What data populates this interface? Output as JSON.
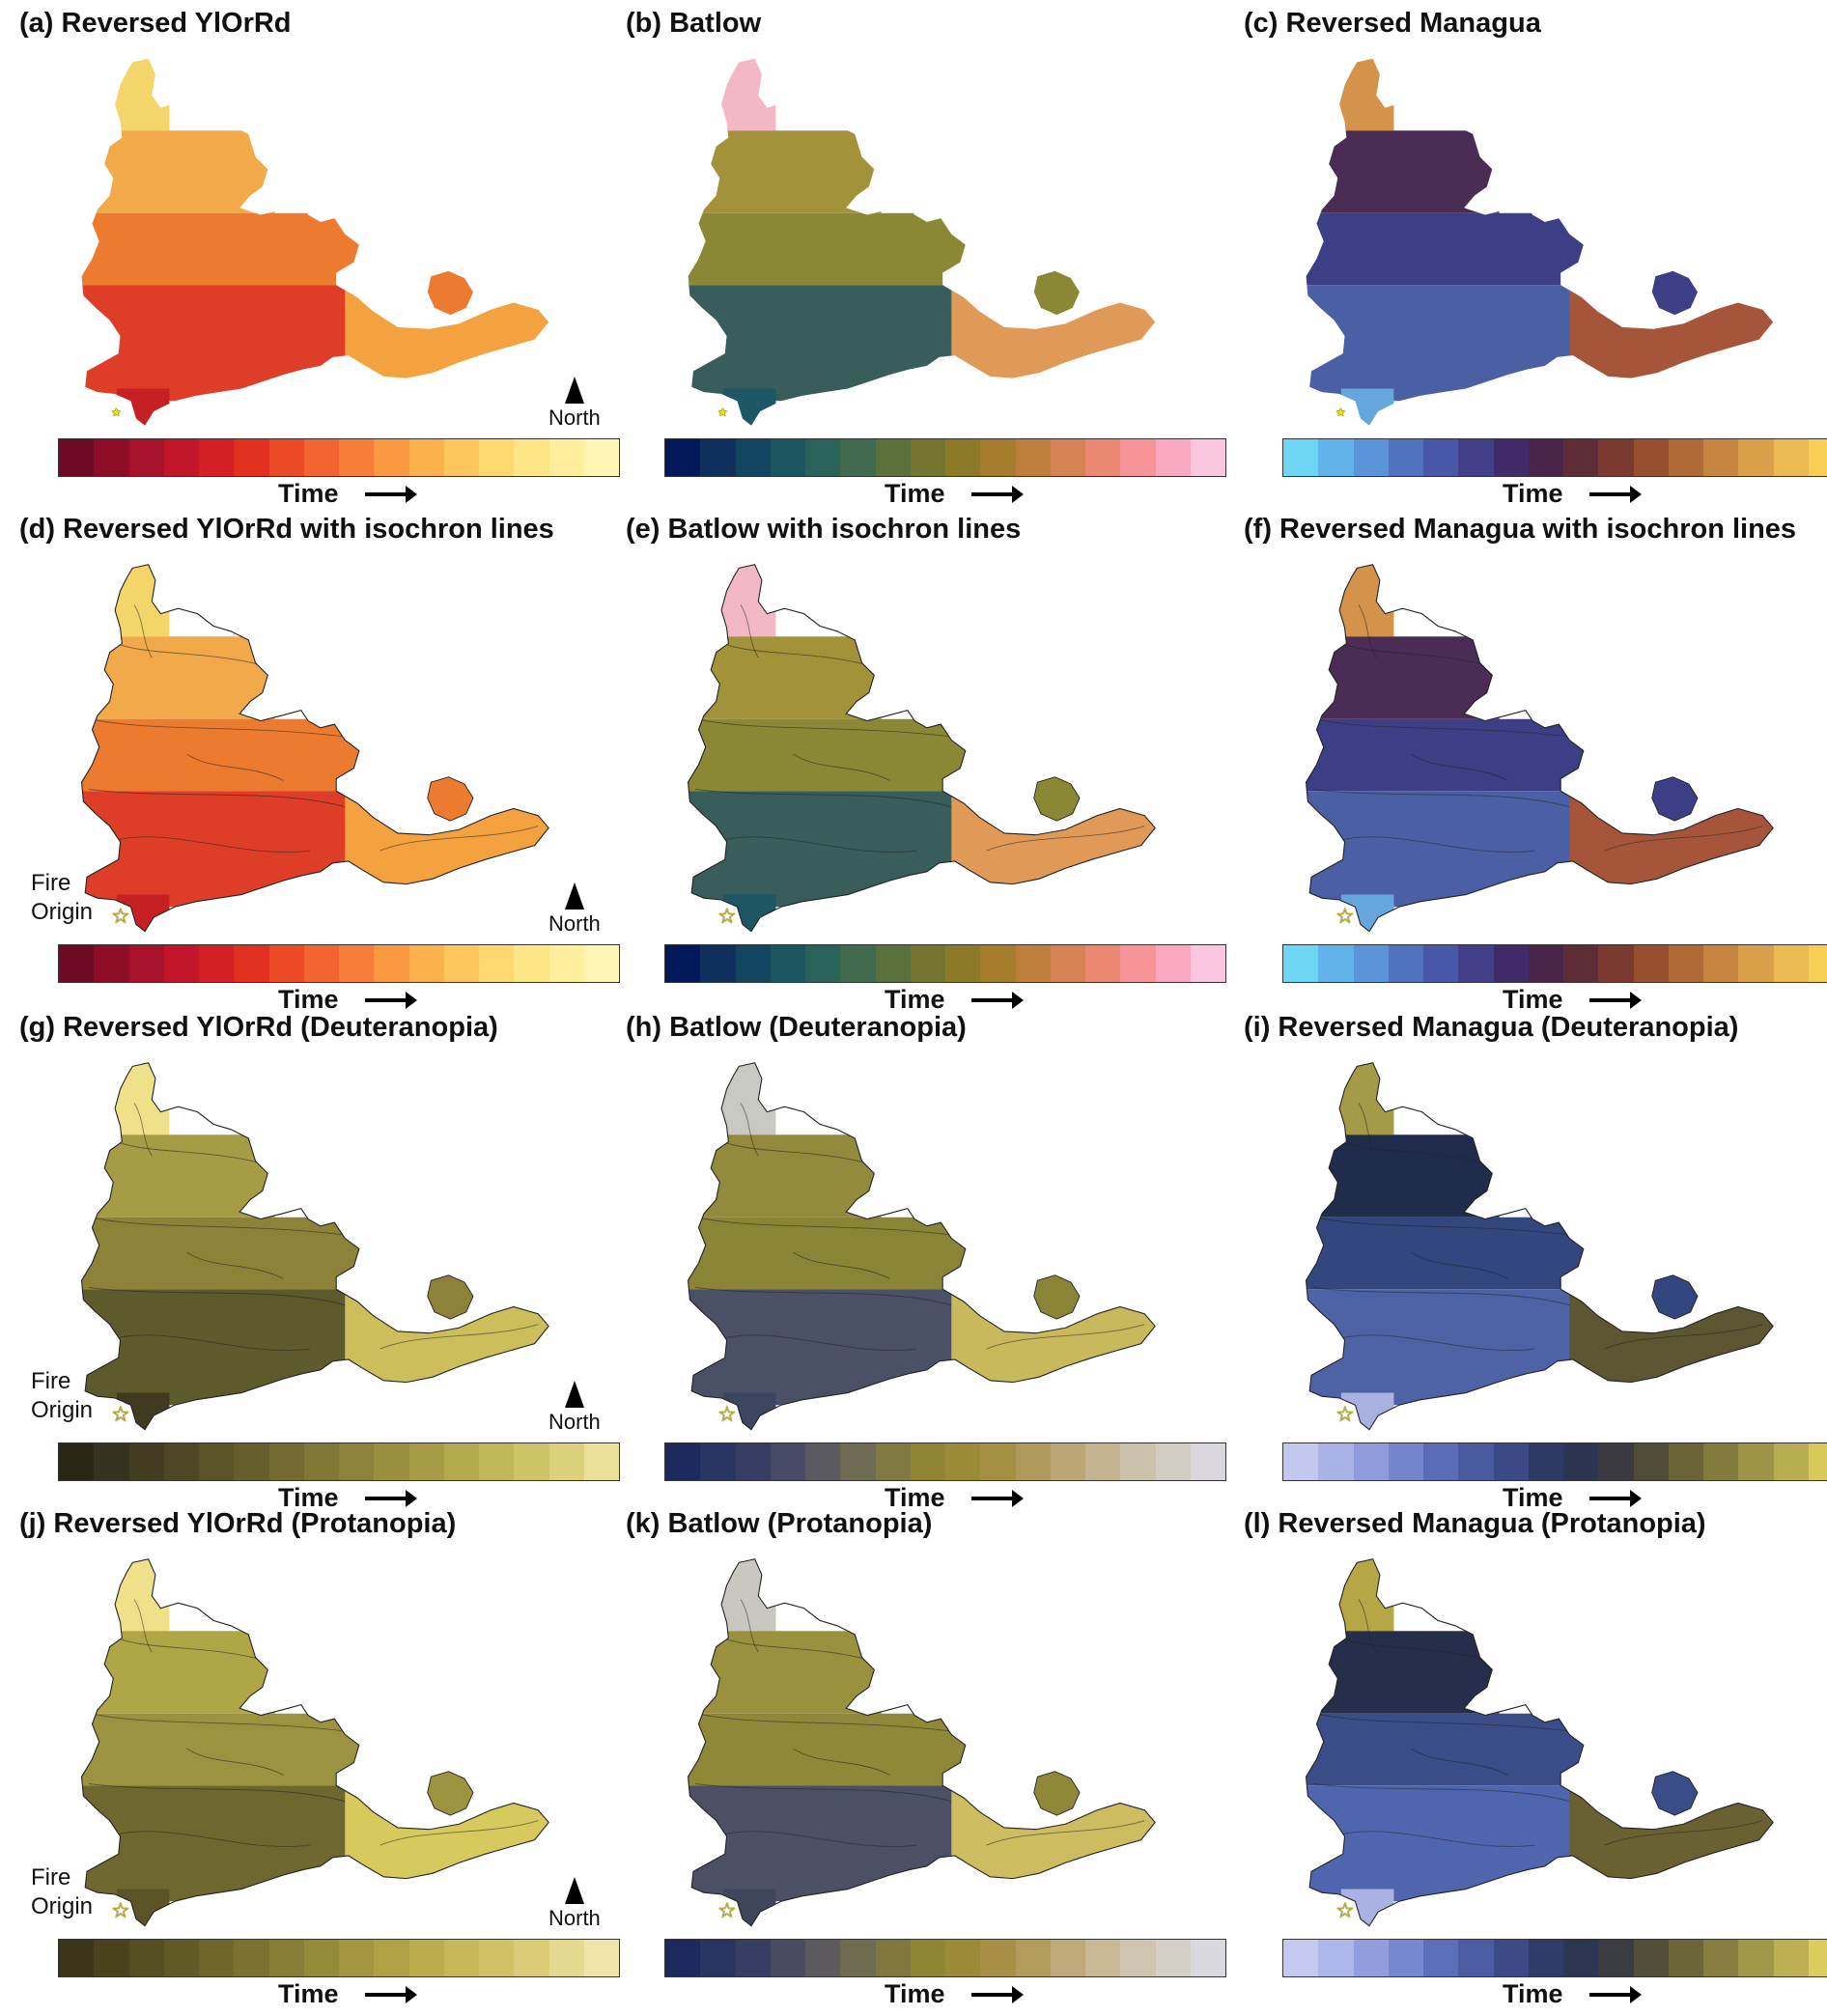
{
  "panels": [
    {
      "title": "(a) Reversed YlOrRd",
      "cmap": "ylorrd",
      "north": true,
      "fire": false,
      "fill": [
        "#f3d56a",
        "#f1a94a",
        "#ed7b2f",
        "#de3d27",
        "#c61f24",
        "#f4a23f"
      ]
    },
    {
      "title": "(b) Batlow",
      "cmap": "batlow",
      "north": false,
      "fire": false,
      "fill": [
        "#f2b8c6",
        "#a2933a",
        "#8a8835",
        "#385d5a",
        "#1d5765",
        "#e19958"
      ]
    },
    {
      "title": "(c) Reversed Managua",
      "cmap": "managua",
      "north": false,
      "fire": false,
      "fill": [
        "#d4934a",
        "#4a2c55",
        "#3c3f86",
        "#4a5fa4",
        "#65a6dc",
        "#a6553a"
      ]
    },
    {
      "title": "(d) Reversed YlOrRd with isochron lines",
      "cmap": "ylorrd",
      "north": true,
      "fire": true,
      "fill": [
        "#f3d56a",
        "#f1a94a",
        "#ed7b2f",
        "#de3d27",
        "#c61f24",
        "#f4a23f"
      ]
    },
    {
      "title": "(e) Batlow with isochron lines",
      "cmap": "batlow",
      "north": false,
      "fire": false,
      "fill": [
        "#f2b8c6",
        "#a2933a",
        "#8a8835",
        "#385d5a",
        "#1d5765",
        "#e19958"
      ]
    },
    {
      "title": "(f) Reversed Managua with isochron lines",
      "cmap": "managua",
      "north": false,
      "fire": false,
      "fill": [
        "#d4934a",
        "#4a2c55",
        "#3c3f86",
        "#4a5fa4",
        "#65a6dc",
        "#a6553a"
      ]
    },
    {
      "title": "(g) Reversed YlOrRd (Deuteranopia)",
      "cmap": "ylorrd_d",
      "north": true,
      "fire": true,
      "fill": [
        "#efe08a",
        "#a69c45",
        "#8c8238",
        "#5d5a2c",
        "#3f3a20",
        "#cdbe5c"
      ]
    },
    {
      "title": "(h) Batlow (Deuteranopia)",
      "cmap": "batlow_d",
      "north": false,
      "fire": false,
      "fill": [
        "#c9c9c3",
        "#928a3c",
        "#8a8436",
        "#4a5065",
        "#3c465e",
        "#c8b95c"
      ]
    },
    {
      "title": "(i) Reversed Managua (Deuteranopia)",
      "cmap": "managua_d",
      "north": false,
      "fire": false,
      "fill": [
        "#a59a48",
        "#1f2c4c",
        "#33467e",
        "#4d63a6",
        "#a8b1e0",
        "#5c5632"
      ]
    },
    {
      "title": "(j) Reversed YlOrRd (Protanopia)",
      "cmap": "ylorrd_p",
      "north": true,
      "fire": true,
      "fill": [
        "#efe08a",
        "#b0a648",
        "#9c9340",
        "#6e6830",
        "#5a5427",
        "#d6c95e"
      ]
    },
    {
      "title": "(k) Batlow (Protanopia)",
      "cmap": "batlow_p",
      "north": false,
      "fire": false,
      "fill": [
        "#c8c8c0",
        "#9a913e",
        "#8e8838",
        "#4c5064",
        "#3e465c",
        "#cdbd60"
      ]
    },
    {
      "title": "(l) Reversed Managua (Protanopia)",
      "cmap": "managua_p",
      "north": false,
      "fire": false,
      "fill": [
        "#b5a745",
        "#252f4c",
        "#3a4d88",
        "#4f66ae",
        "#a9b2e2",
        "#6a6132"
      ]
    }
  ],
  "colormaps": {
    "ylorrd": [
      "#6e0a23",
      "#8d0d26",
      "#a8112a",
      "#c2152a",
      "#d41f27",
      "#e2301f",
      "#ec4a24",
      "#f26430",
      "#f77e38",
      "#fa9940",
      "#fcb24c",
      "#fdc75d",
      "#fdd870",
      "#fee585",
      "#ffef9c",
      "#fff6b5"
    ],
    "batlow": [
      "#011959",
      "#0f2f5d",
      "#134560",
      "#1b555f",
      "#2a6159",
      "#41694d",
      "#5a703d",
      "#74762f",
      "#8d7a28",
      "#a57d2c",
      "#bf7f3c",
      "#d68255",
      "#eb8872",
      "#f6949a",
      "#f9a8c2",
      "#fac6e0"
    ],
    "managua": [
      "#6fd6f5",
      "#62b3ea",
      "#5993d8",
      "#5073c0",
      "#4858a6",
      "#433f89",
      "#3f2b67",
      "#472448",
      "#5e2c37",
      "#7b3a30",
      "#97502f",
      "#b06a36",
      "#c5843f",
      "#d9a049",
      "#ebba50",
      "#f7cf55"
    ],
    "ylorrd_d": [
      "#2a2717",
      "#363220",
      "#423c22",
      "#4d4725",
      "#5a5329",
      "#665f2d",
      "#726a31",
      "#7f7736",
      "#8c833a",
      "#998f3f",
      "#a79c45",
      "#b4a94d",
      "#c1b658",
      "#cec367",
      "#dcd07a",
      "#ebe098"
    ],
    "batlow_d": [
      "#1d2a5e",
      "#283562",
      "#363e63",
      "#484b65",
      "#5b5a60",
      "#6e6b52",
      "#807941",
      "#918535",
      "#9b8b36",
      "#a48f42",
      "#b0995a",
      "#bba775",
      "#c4b490",
      "#ccc2ab",
      "#d3ccc3",
      "#d9d6dd"
    ],
    "managua_d": [
      "#c2c8ee",
      "#aab3e6",
      "#8f9bdb",
      "#7585cc",
      "#5b6cb7",
      "#4a5a9f",
      "#3b4a86",
      "#2e3a66",
      "#2b3450",
      "#3a3a40",
      "#514c38",
      "#6a6338",
      "#837b3d",
      "#9e9447",
      "#b9ad51",
      "#d8c95a"
    ],
    "ylorrd_p": [
      "#3b3619",
      "#48421d",
      "#554e22",
      "#625a26",
      "#6f662b",
      "#7c7230",
      "#897e35",
      "#968a3a",
      "#a3963f",
      "#b0a145",
      "#bcac4c",
      "#c8b756",
      "#d3c265",
      "#ddcc77",
      "#e7d88f",
      "#f0e4ab"
    ],
    "batlow_p": [
      "#1d2a60",
      "#283562",
      "#363f63",
      "#494b63",
      "#5c5a5d",
      "#6f6b50",
      "#817840",
      "#918435",
      "#9c8a38",
      "#a88f45",
      "#b39b5c",
      "#bfa978",
      "#c9b894",
      "#d0c6b0",
      "#d6cfc7",
      "#dad8df"
    ],
    "managua_p": [
      "#c4caef",
      "#acb6e8",
      "#919edd",
      "#7688ce",
      "#5c6fba",
      "#4b5ca2",
      "#3c4b88",
      "#2f3b68",
      "#2c3552",
      "#3b3b42",
      "#534e39",
      "#6d653a",
      "#877e40",
      "#a29849",
      "#bdb053",
      "#dccc5c"
    ]
  },
  "labels": {
    "time": "Time",
    "north": "North",
    "fire_line1": "Fire",
    "fire_line2": "Origin",
    "star": "☆"
  }
}
